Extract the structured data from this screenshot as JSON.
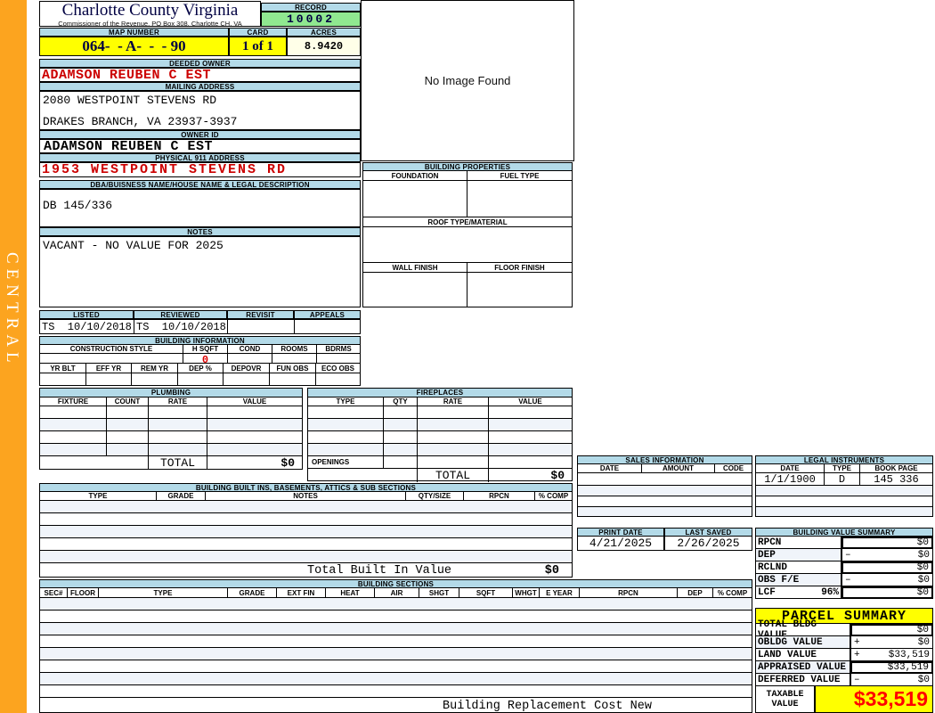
{
  "sidebar": {
    "label": "CENTRAL"
  },
  "header": {
    "county": "Charlotte County Virginia",
    "commissioner": "Commissioner of the Revenue, PO Box 308, Charlotte CH, VA",
    "record_label": "RECORD",
    "record_value": "10002",
    "map_number_label": "MAP NUMBER",
    "map_number_value": "064-  - A-  -  - 90",
    "card_label": "CARD",
    "card_value": "1 of 1",
    "acres_label": "ACRES",
    "acres_value": "8.9420"
  },
  "owner": {
    "deeded_owner_label": "DEEDED OWNER",
    "deeded_owner": "ADAMSON REUBEN C EST",
    "mailing_address_label": "MAILING ADDRESS",
    "mailing_line1": "2080 WESTPOINT STEVENS RD",
    "mailing_line2": "DRAKES BRANCH, VA 23937-3937",
    "owner_id_label": "OWNER ID",
    "owner_id": "ADAMSON REUBEN C EST",
    "physical_address_label": "PHYSICAL 911 ADDRESS",
    "physical_address": "1953 WESTPOINT STEVENS RD",
    "dba_label": "DBA/BUISNESS NAME/HOUSE NAME & LEGAL DESCRIPTION",
    "dba_value": "DB 145/336",
    "notes_label": "NOTES",
    "notes_value": "VACANT - NO VALUE FOR 2025"
  },
  "review": {
    "listed_label": "LISTED",
    "reviewed_label": "REVIEWED",
    "revisit_label": "REVISIT",
    "appeals_label": "APPEALS",
    "listed_value": "TS  10/10/2018",
    "reviewed_value": "TS  10/10/2018"
  },
  "building_info": {
    "title": "BUILDING INFORMATION",
    "columns1": [
      "CONSTRUCTION STYLE",
      "H SQFT",
      "COND",
      "ROOMS",
      "BDRMS"
    ],
    "h_sqft_value": "0",
    "columns2": [
      "YR BLT",
      "EFF YR",
      "REM YR",
      "DEP %",
      "DEPOVR",
      "FUN OBS",
      "ECO OBS"
    ]
  },
  "plumbing": {
    "title": "PLUMBING",
    "columns": [
      "FIXTURE",
      "COUNT",
      "RATE",
      "VALUE"
    ],
    "total_label": "TOTAL",
    "total_value": "$0"
  },
  "fireplaces": {
    "title": "FIREPLACES",
    "columns": [
      "TYPE",
      "QTY",
      "RATE",
      "VALUE"
    ],
    "openings_label": "OPENINGS",
    "total_label": "TOTAL",
    "total_value": "$0"
  },
  "built_ins": {
    "title": "BUILDING BUILT INS, BASEMENTS, ATTICS & SUB SECTIONS",
    "columns": [
      "TYPE",
      "GRADE",
      "NOTES",
      "QTY/SIZE",
      "RPCN",
      "% COMP"
    ],
    "total_label": "Total Built In Value",
    "total_value": "$0"
  },
  "building_sections": {
    "title": "BUILDING SECTIONS",
    "columns": [
      "SEC#",
      "FLOOR",
      "TYPE",
      "GRADE",
      "EXT FIN",
      "HEAT",
      "AIR",
      "SHGT",
      "SQFT",
      "WHGT",
      "E YEAR",
      "RPCN",
      "DEP",
      "% COMP"
    ],
    "footer_label": "Building Replacement Cost New"
  },
  "image_panel": {
    "placeholder": "No Image Found"
  },
  "building_properties": {
    "title": "BUILDING PROPERTIES",
    "foundation_label": "FOUNDATION",
    "fuel_label": "FUEL TYPE",
    "roof_label": "ROOF TYPE/MATERIAL",
    "wall_label": "WALL FINISH",
    "floor_label": "FLOOR FINISH"
  },
  "sales": {
    "title": "SALES INFORMATION",
    "columns": [
      "DATE",
      "AMOUNT",
      "CODE"
    ]
  },
  "legal": {
    "title": "LEGAL INSTRUMENTS",
    "columns": [
      "DATE",
      "TYPE",
      "BOOK PAGE"
    ],
    "rows": [
      {
        "date": "1/1/1900",
        "type": "D",
        "book_page": "145 336"
      }
    ]
  },
  "dates": {
    "print_label": "PRINT DATE",
    "print_value": "4/21/2025",
    "saved_label": "LAST SAVED",
    "saved_value": "2/26/2025"
  },
  "value_summary": {
    "title": "BUILDING VALUE SUMMARY",
    "rows": [
      {
        "label": "RPCN",
        "pct": "",
        "op": "",
        "value": "$0"
      },
      {
        "label": "DEP",
        "pct": "",
        "op": "–",
        "value": "$0"
      },
      {
        "label": "RCLND",
        "pct": "",
        "op": "",
        "value": "$0"
      },
      {
        "label": "OBS F/E",
        "pct": "",
        "op": "–",
        "value": "$0"
      },
      {
        "label": "LCF",
        "pct": "96%",
        "op": "",
        "value": "$0"
      }
    ]
  },
  "parcel_summary": {
    "title": "PARCEL SUMMARY",
    "rows": [
      {
        "label": "TOTAL BLDG VALUE",
        "op": "",
        "value": "$0"
      },
      {
        "label": "OBLDG VALUE",
        "op": "+",
        "value": "$0"
      },
      {
        "label": "LAND VALUE",
        "op": "+",
        "value": "$33,519"
      },
      {
        "label": "APPRAISED VALUE",
        "op": "",
        "value": "$33,519"
      },
      {
        "label": "DEFERRED VALUE",
        "op": "–",
        "value": "$0"
      }
    ],
    "taxable_label": "TAXABLE VALUE",
    "taxable_value": "$33,519"
  },
  "colors": {
    "accent_orange": "#FCA41F",
    "header_blue": "#B3DAE8",
    "record_green": "#90E890",
    "highlight_yellow": "#FFFF00",
    "acres_cream": "#FFFFE8",
    "owner_red": "#CC0000",
    "taxable_red": "#FF0000"
  }
}
